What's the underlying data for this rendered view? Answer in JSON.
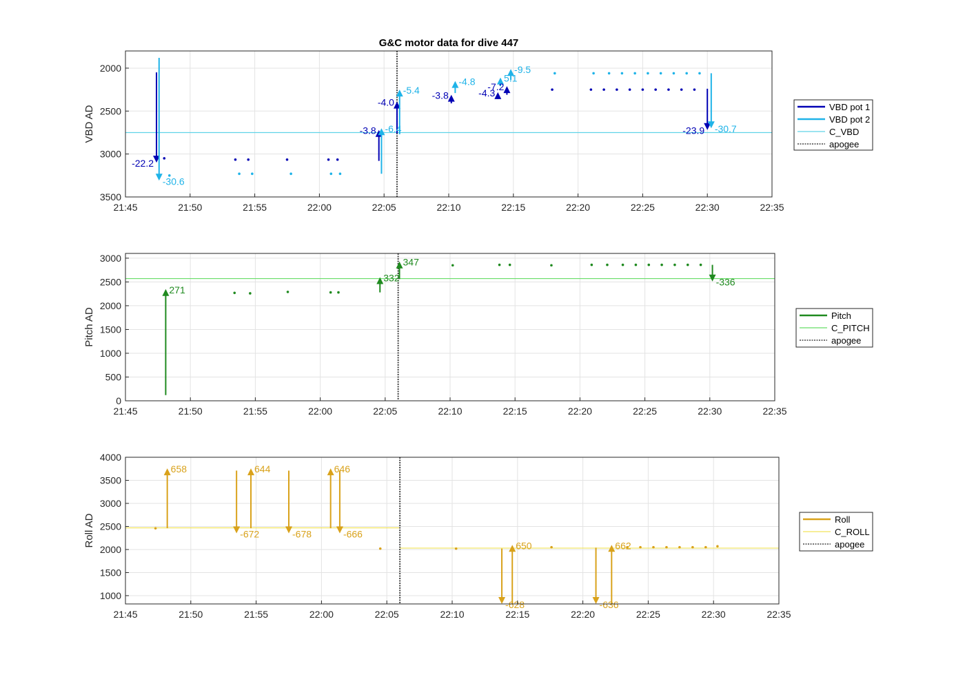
{
  "figure_title": "G&C motor data for dive 447",
  "chart_data": [
    {
      "id": "vbd",
      "type": "line",
      "ylabel": "VBD AD",
      "xlabel": "",
      "ylim": [
        1800,
        3500
      ],
      "yreverse": true,
      "yticks": [
        2000,
        2500,
        3000,
        3500
      ],
      "xlim": [
        "21:45",
        "22:35"
      ],
      "xticks": [
        "21:45",
        "21:50",
        "21:55",
        "22:00",
        "22:05",
        "22:10",
        "22:15",
        "22:20",
        "22:25",
        "22:30",
        "22:35"
      ],
      "grid": true,
      "legend_position": "right",
      "apogee": "22:06",
      "reference_lines": [
        {
          "name": "C_VBD",
          "color": "#5fd3e8",
          "segments": [
            {
              "x0": "21:45",
              "x1": "22:35",
              "y": 2750
            }
          ]
        }
      ],
      "series": [
        {
          "name": "VBD pot 1",
          "color": "#0000b4",
          "points": [
            [
              "22:18",
              2250
            ],
            [
              "22:21",
              2250
            ],
            [
              "22:22",
              2250
            ],
            [
              "22:23",
              2250
            ],
            [
              "22:24",
              2250
            ],
            [
              "22:25",
              2250
            ],
            [
              "22:26",
              2250
            ],
            [
              "22:27",
              2250
            ],
            [
              "22:28",
              2250
            ],
            [
              "22:29",
              2250
            ],
            [
              "21:48",
              3050
            ],
            [
              "21:53.5",
              3065
            ],
            [
              "21:54.5",
              3065
            ],
            [
              "21:57.5",
              3065
            ],
            [
              "22:00.7",
              3065
            ],
            [
              "22:01.4",
              3065
            ]
          ],
          "moves": [
            {
              "x": "21:47.4",
              "y0": 2050,
              "y1": 3100,
              "label": "-22.2",
              "label_side": "left"
            },
            {
              "x": "22:04.6",
              "y0": 3080,
              "y1": 2720,
              "label": "-3.8",
              "label_side": "left"
            },
            {
              "x": "22:06",
              "y0": 2760,
              "y1": 2390,
              "label": "-4.0",
              "label_side": "left"
            },
            {
              "x": "22:10.2",
              "y0": 2410,
              "y1": 2310,
              "label": "-3.8",
              "label_side": "left"
            },
            {
              "x": "22:13.8",
              "y0": 2360,
              "y1": 2280,
              "label": "-4.3",
              "label_side": "left"
            },
            {
              "x": "22:14.5",
              "y0": 2310,
              "y1": 2210,
              "label": "-7.2",
              "label_side": "left"
            },
            {
              "x": "22:30",
              "y0": 2240,
              "y1": 2720,
              "label": "-23.9",
              "label_side": "left"
            }
          ]
        },
        {
          "name": "VBD pot 2",
          "color": "#1fb3e8",
          "points": [
            [
              "22:18.2",
              2060
            ],
            [
              "22:21.2",
              2060
            ],
            [
              "22:22.4",
              2060
            ],
            [
              "22:23.4",
              2060
            ],
            [
              "22:24.4",
              2060
            ],
            [
              "22:25.4",
              2060
            ],
            [
              "22:26.4",
              2060
            ],
            [
              "22:27.4",
              2060
            ],
            [
              "22:28.4",
              2060
            ],
            [
              "22:29.4",
              2060
            ],
            [
              "21:48.4",
              3250
            ],
            [
              "21:53.8",
              3230
            ],
            [
              "21:54.8",
              3230
            ],
            [
              "21:57.8",
              3230
            ],
            [
              "22:00.9",
              3230
            ],
            [
              "22:01.6",
              3230
            ]
          ],
          "moves": [
            {
              "x": "21:47.6",
              "y0": 1880,
              "y1": 3310,
              "label": "-30.6",
              "label_side": "right"
            },
            {
              "x": "22:04.8",
              "y0": 3230,
              "y1": 2700,
              "label": "-6.4",
              "label_side": "right"
            },
            {
              "x": "22:06.2",
              "y0": 2770,
              "y1": 2250,
              "label": "-5.4",
              "label_side": "right"
            },
            {
              "x": "22:10.5",
              "y0": 2290,
              "y1": 2150,
              "label": "-4.8",
              "label_side": "right"
            },
            {
              "x": "22:14",
              "y0": 2210,
              "y1": 2110,
              "label": "5.1",
              "label_side": "right"
            },
            {
              "x": "22:14.8",
              "y0": 2140,
              "y1": 2010,
              "label": "-9.5",
              "label_side": "right"
            },
            {
              "x": "22:30.3",
              "y0": 2060,
              "y1": 2700,
              "label": "-30.7",
              "label_side": "right"
            }
          ]
        }
      ],
      "legend": [
        "VBD pot 1",
        "VBD pot 2",
        "C_VBD",
        "apogee"
      ]
    },
    {
      "id": "pitch",
      "type": "line",
      "ylabel": "Pitch AD",
      "xlabel": "",
      "ylim": [
        0,
        3100
      ],
      "yreverse": false,
      "yticks": [
        0,
        500,
        1000,
        1500,
        2000,
        2500,
        3000
      ],
      "xlim": [
        "21:45",
        "22:35"
      ],
      "xticks": [
        "21:45",
        "21:50",
        "21:55",
        "22:00",
        "22:05",
        "22:10",
        "22:15",
        "22:20",
        "22:25",
        "22:30",
        "22:35"
      ],
      "grid": true,
      "legend_position": "right",
      "apogee": "22:06",
      "reference_lines": [
        {
          "name": "C_PITCH",
          "color": "#66dd66",
          "segments": [
            {
              "x0": "21:45",
              "x1": "22:35",
              "y": 2570
            }
          ]
        }
      ],
      "series": [
        {
          "name": "Pitch",
          "color": "#1f8a1f",
          "points": [
            [
              "21:53.4",
              2270
            ],
            [
              "21:54.6",
              2260
            ],
            [
              "21:57.5",
              2290
            ],
            [
              "22:00.8",
              2280
            ],
            [
              "22:01.4",
              2280
            ],
            [
              "22:10.2",
              2850
            ],
            [
              "22:13.8",
              2860
            ],
            [
              "22:14.6",
              2860
            ],
            [
              "22:17.8",
              2850
            ],
            [
              "22:20.9",
              2860
            ],
            [
              "22:22.1",
              2860
            ],
            [
              "22:23.3",
              2860
            ],
            [
              "22:24.3",
              2860
            ],
            [
              "22:25.3",
              2860
            ],
            [
              "22:26.3",
              2860
            ],
            [
              "22:27.3",
              2860
            ],
            [
              "22:28.3",
              2860
            ],
            [
              "22:29.3",
              2860
            ]
          ],
          "moves": [
            {
              "x": "21:48.1",
              "y0": 120,
              "y1": 2350,
              "label": "271",
              "label_side": "right"
            },
            {
              "x": "22:04.6",
              "y0": 2280,
              "y1": 2600,
              "label": "332",
              "label_side": "right"
            },
            {
              "x": "22:06.1",
              "y0": 2560,
              "y1": 2930,
              "label": "347",
              "label_side": "right"
            },
            {
              "x": "22:30.2",
              "y0": 2860,
              "y1": 2510,
              "label": "-336",
              "label_side": "right"
            }
          ]
        }
      ],
      "legend": [
        "Pitch",
        "C_PITCH",
        "apogee"
      ]
    },
    {
      "id": "roll",
      "type": "line",
      "ylabel": "Roll AD",
      "xlabel": "",
      "ylim": [
        820,
        4000
      ],
      "yreverse": false,
      "yticks": [
        1000,
        1500,
        2000,
        2500,
        3000,
        3500,
        4000
      ],
      "xlim": [
        "21:45",
        "22:35"
      ],
      "xticks": [
        "21:45",
        "21:50",
        "21:55",
        "22:00",
        "22:05",
        "22:10",
        "22:15",
        "22:20",
        "22:25",
        "22:30",
        "22:35"
      ],
      "grid": true,
      "legend_position": "right",
      "apogee": "22:06",
      "reference_lines": [
        {
          "name": "C_ROLL",
          "color": "#f2e35a",
          "segments": [
            {
              "x0": "21:45",
              "x1": "22:06",
              "y": 2470
            },
            {
              "x0": "22:06",
              "x1": "22:35",
              "y": 2030
            }
          ]
        }
      ],
      "series": [
        {
          "name": "Roll",
          "color": "#d9a21b",
          "points": [
            [
              "21:47.3",
              2460
            ],
            [
              "22:04.5",
              2020
            ],
            [
              "22:10.3",
              2020
            ],
            [
              "22:17.6",
              2050
            ],
            [
              "22:23.4",
              2050
            ],
            [
              "22:24.4",
              2050
            ],
            [
              "22:25.4",
              2050
            ],
            [
              "22:26.4",
              2050
            ],
            [
              "22:27.4",
              2050
            ],
            [
              "22:28.4",
              2050
            ],
            [
              "22:29.4",
              2050
            ],
            [
              "22:30.3",
              2070
            ]
          ],
          "moves": [
            {
              "x": "21:48.2",
              "y0": 2460,
              "y1": 3760,
              "label": "658",
              "label_side": "right"
            },
            {
              "x": "21:53.5",
              "y0": 3710,
              "y1": 2350,
              "label": "-672",
              "label_side": "right"
            },
            {
              "x": "21:54.6",
              "y0": 2460,
              "y1": 3760,
              "label": "644",
              "label_side": "right"
            },
            {
              "x": "21:57.5",
              "y0": 3710,
              "y1": 2350,
              "label": "-678",
              "label_side": "right"
            },
            {
              "x": "22:00.7",
              "y0": 2460,
              "y1": 3760,
              "label": "646",
              "label_side": "right"
            },
            {
              "x": "22:01.4",
              "y0": 3710,
              "y1": 2350,
              "label": "-666",
              "label_side": "right"
            },
            {
              "x": "22:13.8",
              "y0": 2020,
              "y1": 820,
              "label": "-628",
              "label_side": "right"
            },
            {
              "x": "22:14.6",
              "y0": 820,
              "y1": 2100,
              "label": "650",
              "label_side": "right"
            },
            {
              "x": "22:21",
              "y0": 2040,
              "y1": 820,
              "label": "-636",
              "label_side": "right"
            },
            {
              "x": "22:22.2",
              "y0": 820,
              "y1": 2100,
              "label": "662",
              "label_side": "right"
            }
          ]
        }
      ],
      "legend": [
        "Roll",
        "C_ROLL",
        "apogee"
      ]
    }
  ]
}
